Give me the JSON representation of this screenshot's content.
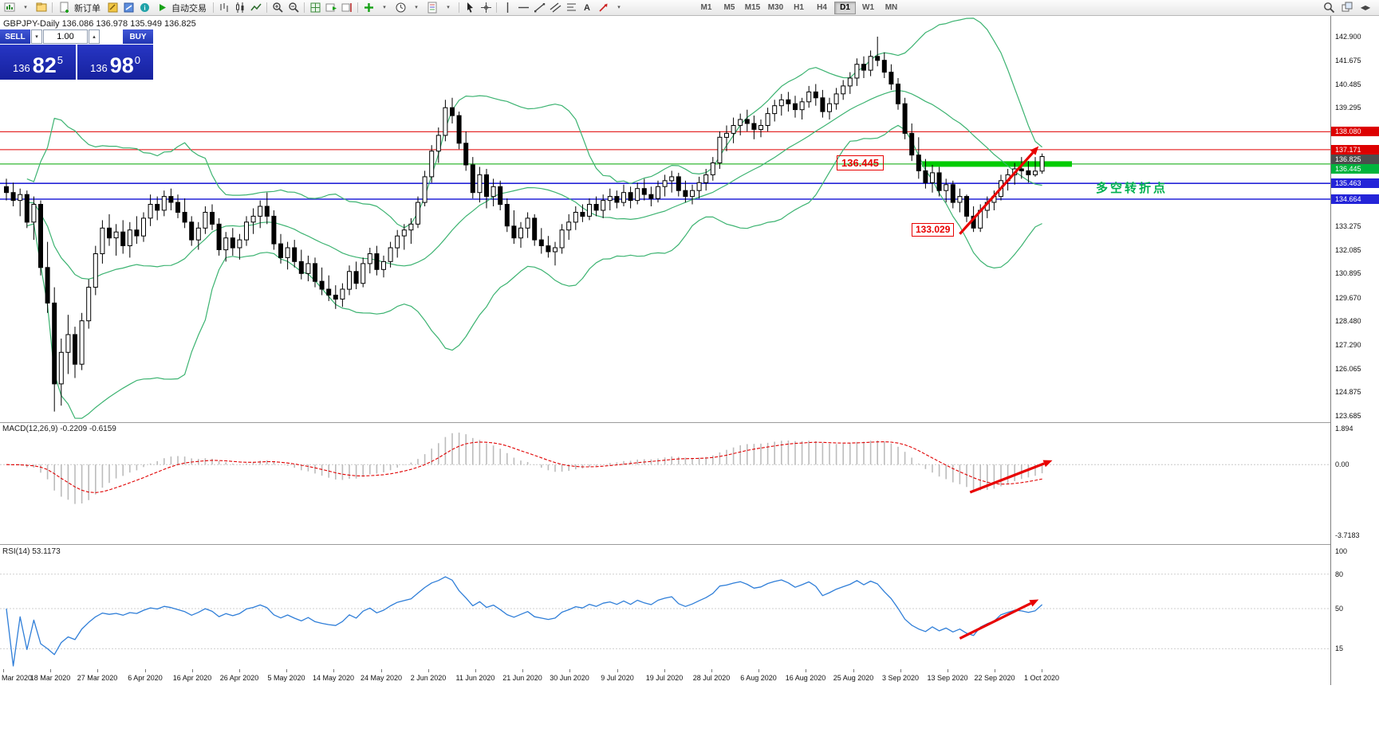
{
  "window": {
    "chart_title": "GBPJPY-Daily 136.086 136.978 135.949 136.825"
  },
  "toolbar": {
    "sections": [
      {
        "items": [
          {
            "name": "new-chart-icon",
            "icon": "newchart"
          },
          {
            "name": "chart-list-dropdown-icon",
            "icon": "chevron"
          },
          {
            "name": "profiles-icon",
            "icon": "profiles"
          }
        ]
      },
      {
        "items": [
          {
            "name": "new-order-button",
            "icon": "neworder",
            "label": "新订单"
          },
          {
            "name": "metaeditor-icon",
            "icon": "editor"
          },
          {
            "name": "market-watch-icon",
            "icon": "market"
          },
          {
            "name": "help-icon",
            "icon": "info"
          },
          {
            "name": "auto-trading-button",
            "icon": "play",
            "label": "自动交易"
          }
        ]
      },
      {
        "items": [
          {
            "name": "bar-chart-icon",
            "icon": "bars"
          },
          {
            "name": "candlestick-chart-icon",
            "icon": "candles"
          },
          {
            "name": "line-chart-icon",
            "icon": "linechart"
          }
        ]
      },
      {
        "items": [
          {
            "name": "zoom-in-icon",
            "icon": "zoomin"
          },
          {
            "name": "zoom-out-icon",
            "icon": "zoomout"
          }
        ]
      },
      {
        "items": [
          {
            "name": "tile-windows-icon",
            "icon": "grid"
          },
          {
            "name": "auto-scroll-icon",
            "icon": "autoscroll"
          },
          {
            "name": "chart-shift-icon",
            "icon": "shift"
          }
        ]
      },
      {
        "items": [
          {
            "name": "indicators-icon",
            "icon": "indplus"
          },
          {
            "name": "indicators-dropdown-icon",
            "icon": "chevron"
          },
          {
            "name": "periods-icon",
            "icon": "clock"
          },
          {
            "name": "periods-dropdown-icon",
            "icon": "chevron"
          },
          {
            "name": "templates-icon",
            "icon": "template"
          },
          {
            "name": "templates-dropdown-icon",
            "icon": "chevron"
          }
        ]
      },
      {
        "items": [
          {
            "name": "cursor-icon",
            "icon": "cursor"
          },
          {
            "name": "crosshair-icon",
            "icon": "crosshair"
          }
        ]
      },
      {
        "items": [
          {
            "name": "vertical-line-icon",
            "icon": "vline"
          },
          {
            "name": "horizontal-line-icon",
            "icon": "hline"
          },
          {
            "name": "trendline-icon",
            "icon": "trend"
          },
          {
            "name": "channel-icon",
            "icon": "channel"
          },
          {
            "name": "fibonacci-icon",
            "icon": "fibo"
          },
          {
            "name": "text-label-icon",
            "icon": "text"
          },
          {
            "name": "arrow-object-icon",
            "icon": "arrowobj"
          },
          {
            "name": "objects-dropdown-icon",
            "icon": "chevron"
          }
        ]
      }
    ],
    "timeframes": [
      "M1",
      "M5",
      "M15",
      "M30",
      "H1",
      "H4",
      "D1",
      "W1",
      "MN"
    ],
    "active_timeframe": "D1",
    "right_items": [
      {
        "name": "search-icon",
        "icon": "search"
      },
      {
        "name": "cascade-windows-icon",
        "icon": "cascade"
      },
      {
        "name": "navigate-charts-icon",
        "icon": "navarrows"
      }
    ]
  },
  "trade_panel": {
    "sell_label": "SELL",
    "buy_label": "BUY",
    "volume": "1.00",
    "spinner_down": "▾",
    "spinner_up": "▴",
    "sell_price_prefix": "136",
    "sell_price_big": "82",
    "sell_price_sup": "5",
    "buy_price_prefix": "136",
    "buy_price_big": "98",
    "buy_price_sup": "0"
  },
  "annotations": {
    "resistance_label": "136.445",
    "low_label": "133.029",
    "turning_point_label": "多空转折点"
  },
  "indicators": {
    "macd_label": "MACD(12,26,9) -0.2209 -0.6159",
    "rsi_label": "RSI(14) 53.1173"
  },
  "price_axis": {
    "ticks": [
      "142.900",
      "141.675",
      "140.485",
      "139.295",
      "133.275",
      "132.085",
      "130.895",
      "129.670",
      "128.480",
      "127.290",
      "126.065",
      "124.875",
      "123.685"
    ],
    "tags": [
      {
        "text": "138.080",
        "color": "#dd0000"
      },
      {
        "text": "137.171",
        "color": "#dd0000"
      },
      {
        "text": "136.825",
        "color": "#4d4d4d"
      },
      {
        "text": "136.445",
        "color": "#00b43c"
      },
      {
        "text": "135.463",
        "color": "#2424d8"
      },
      {
        "text": "134.664",
        "color": "#2424d8"
      }
    ]
  },
  "macd_axis": [
    "1.894",
    "0.00",
    "-3.7183"
  ],
  "rsi_axis": [
    "100",
    "80",
    "50",
    "15"
  ],
  "time_axis": [
    "Mar 2020",
    "18 Mar 2020",
    "27 Mar 2020",
    "6 Apr 2020",
    "16 Apr 2020",
    "26 Apr 2020",
    "5 May 2020",
    "14 May 2020",
    "24 May 2020",
    "2 Jun 2020",
    "11 Jun 2020",
    "21 Jun 2020",
    "30 Jun 2020",
    "9 Jul 2020",
    "19 Jul 2020",
    "28 Jul 2020",
    "6 Aug 2020",
    "16 Aug 2020",
    "25 Aug 2020",
    "3 Sep 2020",
    "13 Sep 2020",
    "22 Sep 2020",
    "1 Oct 2020"
  ],
  "chart_data": {
    "type": "candlestick",
    "symbol": "GBPJPY",
    "period": "Daily",
    "ohlc_header": {
      "open": 136.086,
      "high": 136.978,
      "low": 135.949,
      "close": 136.825
    },
    "price_axis_range": [
      123.44,
      143.87
    ],
    "candles": {
      "open": [
        135.3,
        135.0,
        134.6,
        134.9,
        133.5,
        134.4,
        131.2,
        129.4,
        125.3,
        126.9,
        127.8,
        126.3,
        128.5,
        130.2,
        131.9,
        133.2,
        132.7,
        133.0,
        132.3,
        133.1,
        132.8,
        133.7,
        134.4,
        134.1,
        134.8,
        134.5,
        134.0,
        133.5,
        132.6,
        133.2,
        134.0,
        133.4,
        132.1,
        132.7,
        132.2,
        132.6,
        133.5,
        133.8,
        134.3,
        133.8,
        132.4,
        131.7,
        132.2,
        131.5,
        130.9,
        131.4,
        130.5,
        130.1,
        129.8,
        129.6,
        130.1,
        131.0,
        130.4,
        131.4,
        131.9,
        131.1,
        131.5,
        132.2,
        132.8,
        133.1,
        133.4,
        134.5,
        135.8,
        137.1,
        137.9,
        139.3,
        138.9,
        137.5,
        136.4,
        135.0,
        135.9,
        134.8,
        135.3,
        134.4,
        133.3,
        132.7,
        133.2,
        133.7,
        132.6,
        132.3,
        132.0,
        132.2,
        133.1,
        133.5,
        134.0,
        133.8,
        134.4,
        134.1,
        134.6,
        134.8,
        134.5,
        135.0,
        134.6,
        135.2,
        134.9,
        134.7,
        135.3,
        135.6,
        135.8,
        135.1,
        134.8,
        135.1,
        135.5,
        135.9,
        136.5,
        137.8,
        138.0,
        138.4,
        138.7,
        138.5,
        138.2,
        138.4,
        139.0,
        139.4,
        139.7,
        139.5,
        139.2,
        139.6,
        140.1,
        139.8,
        139.1,
        139.5,
        140.0,
        140.4,
        140.8,
        141.5,
        141.2,
        141.9,
        141.7,
        141.1,
        140.5,
        139.5,
        138.0,
        136.9,
        136.1,
        135.5,
        136.0,
        135.1,
        135.4,
        134.5,
        134.8,
        133.8,
        133.2,
        134.1,
        134.5,
        134.8,
        135.6,
        135.9,
        136.2,
        136.1,
        135.9,
        136.086
      ],
      "high": [
        135.7,
        135.5,
        135.2,
        135.1,
        134.8,
        134.6,
        132.5,
        130.2,
        127.6,
        128.8,
        128.2,
        128.9,
        130.6,
        132.3,
        133.6,
        133.9,
        133.4,
        133.6,
        133.5,
        133.8,
        134.0,
        134.9,
        134.8,
        135.1,
        135.2,
        134.9,
        134.7,
        133.8,
        133.5,
        134.3,
        134.4,
        133.7,
        133.0,
        133.2,
        132.9,
        133.8,
        134.2,
        134.6,
        135.0,
        134.1,
        132.9,
        132.5,
        132.6,
        132.1,
        131.8,
        131.7,
        131.2,
        130.8,
        130.3,
        130.4,
        131.3,
        131.5,
        131.7,
        132.2,
        132.3,
        131.8,
        132.5,
        133.1,
        133.4,
        133.7,
        134.8,
        136.1,
        137.4,
        138.3,
        139.7,
        139.8,
        139.1,
        138.1,
        136.8,
        136.3,
        136.2,
        135.7,
        135.6,
        134.7,
        134.1,
        133.5,
        134.0,
        133.9,
        133.2,
        132.8,
        132.5,
        133.4,
        133.9,
        134.3,
        134.4,
        134.7,
        134.8,
        134.9,
        135.2,
        135.1,
        135.4,
        135.3,
        135.5,
        135.7,
        135.3,
        135.6,
        135.9,
        136.1,
        136.0,
        135.6,
        135.4,
        135.8,
        136.2,
        136.8,
        138.1,
        138.4,
        138.8,
        139.0,
        139.2,
        138.9,
        138.7,
        139.3,
        139.7,
        140.0,
        140.1,
        139.9,
        139.8,
        140.4,
        140.5,
        140.2,
        139.8,
        140.3,
        140.7,
        141.1,
        141.8,
        141.9,
        142.2,
        142.9,
        142.1,
        141.5,
        140.8,
        139.8,
        138.5,
        137.8,
        136.7,
        136.4,
        136.3,
        135.7,
        135.6,
        135.2,
        134.9,
        134.3,
        134.4,
        134.8,
        135.1,
        135.9,
        136.2,
        136.5,
        136.8,
        136.6,
        136.8,
        136.978
      ],
      "low": [
        134.6,
        134.3,
        133.8,
        133.2,
        132.6,
        130.8,
        128.9,
        123.9,
        124.2,
        125.8,
        125.6,
        126.0,
        128.1,
        129.8,
        131.4,
        132.3,
        131.8,
        131.9,
        131.7,
        132.4,
        132.5,
        133.3,
        133.6,
        133.8,
        134.1,
        133.7,
        133.2,
        132.3,
        132.1,
        132.9,
        133.1,
        131.8,
        131.5,
        131.8,
        131.6,
        132.3,
        132.9,
        133.2,
        133.4,
        132.1,
        131.4,
        131.1,
        131.2,
        130.6,
        130.5,
        130.2,
        129.8,
        129.5,
        129.1,
        129.2,
        129.8,
        130.1,
        130.2,
        130.9,
        130.8,
        130.7,
        131.2,
        131.7,
        132.1,
        132.4,
        133.2,
        134.3,
        135.5,
        136.5,
        137.6,
        138.5,
        137.2,
        136.1,
        134.7,
        134.5,
        134.2,
        134.3,
        134.1,
        133.0,
        132.4,
        132.2,
        132.7,
        132.3,
        131.9,
        131.7,
        131.3,
        131.9,
        132.6,
        133.1,
        133.5,
        133.6,
        133.8,
        133.7,
        134.1,
        134.2,
        134.3,
        134.2,
        134.4,
        134.6,
        134.3,
        134.5,
        134.8,
        135.0,
        134.8,
        134.5,
        134.4,
        134.7,
        135.1,
        135.6,
        136.2,
        137.1,
        137.5,
        137.9,
        138.1,
        137.7,
        137.8,
        138.1,
        138.6,
        138.9,
        139.1,
        138.8,
        138.7,
        139.3,
        139.4,
        138.8,
        138.7,
        139.2,
        139.7,
        140.0,
        140.4,
        140.8,
        140.9,
        141.4,
        140.8,
        140.2,
        139.2,
        137.7,
        136.6,
        135.7,
        135.2,
        135.0,
        134.8,
        134.5,
        134.2,
        134.0,
        133.5,
        133.0,
        133.0,
        133.7,
        134.1,
        134.6,
        135.1,
        135.4,
        135.7,
        135.5,
        135.8,
        135.949
      ],
      "close": [
        135.0,
        134.6,
        134.9,
        133.5,
        134.4,
        131.2,
        129.4,
        125.3,
        126.9,
        127.8,
        126.3,
        128.5,
        130.2,
        131.9,
        133.2,
        132.7,
        133.0,
        132.3,
        133.1,
        132.8,
        133.7,
        134.4,
        134.1,
        134.8,
        134.5,
        134.0,
        133.5,
        132.6,
        133.2,
        134.0,
        133.4,
        132.1,
        132.7,
        132.2,
        132.6,
        133.5,
        133.8,
        134.3,
        133.8,
        132.4,
        131.7,
        132.2,
        131.5,
        130.9,
        131.4,
        130.5,
        130.1,
        129.8,
        129.6,
        130.1,
        131.0,
        130.4,
        131.4,
        131.9,
        131.1,
        131.5,
        132.2,
        132.8,
        133.1,
        133.4,
        134.5,
        135.8,
        137.1,
        137.9,
        139.3,
        138.9,
        137.5,
        136.4,
        135.0,
        135.9,
        134.8,
        135.3,
        134.4,
        133.3,
        132.7,
        133.2,
        133.7,
        132.6,
        132.3,
        132.0,
        132.2,
        133.1,
        133.5,
        134.0,
        133.8,
        134.4,
        134.1,
        134.6,
        134.8,
        134.5,
        135.0,
        134.6,
        135.2,
        134.9,
        134.7,
        135.3,
        135.6,
        135.8,
        135.1,
        134.8,
        135.1,
        135.5,
        135.9,
        136.5,
        137.8,
        138.0,
        138.4,
        138.7,
        138.5,
        138.2,
        138.4,
        139.0,
        139.4,
        139.7,
        139.5,
        139.2,
        139.6,
        140.1,
        139.8,
        139.1,
        139.5,
        140.0,
        140.4,
        140.8,
        141.5,
        141.2,
        141.9,
        141.7,
        141.1,
        140.5,
        139.5,
        138.0,
        136.9,
        136.1,
        135.5,
        136.0,
        135.1,
        135.4,
        134.5,
        134.8,
        133.8,
        133.2,
        134.1,
        134.5,
        134.8,
        135.6,
        135.9,
        136.2,
        136.1,
        135.9,
        136.086,
        136.825
      ]
    },
    "horizontal_lines": [
      {
        "price": 138.08,
        "color": "#e00000",
        "width": 1
      },
      {
        "price": 137.171,
        "color": "#e00000",
        "width": 1
      },
      {
        "price": 136.445,
        "color": "#00a800",
        "width": 1
      },
      {
        "price": 135.463,
        "color": "#2424d8",
        "width": 1.6
      },
      {
        "price": 134.664,
        "color": "#2424d8",
        "width": 1.6
      }
    ],
    "zone_segment": {
      "price": 136.445,
      "color": "#00cc00",
      "thickness": 7,
      "from_index": 134,
      "extend_past_last": 38
    },
    "bollinger": {
      "period": 20,
      "deviation": 2,
      "color": "#3cb371"
    },
    "macd": {
      "fast": 12,
      "slow": 26,
      "signal": 9,
      "value": -0.2209,
      "signal_value": -0.6159,
      "range": [
        -3.7183,
        1.894
      ],
      "histogram_color": "#bcbcbc",
      "signal_color": "#e00000"
    },
    "rsi": {
      "period": 14,
      "value": 53.1173,
      "levels": [
        80,
        50,
        15
      ],
      "range": [
        0,
        100
      ],
      "color": "#2f7ed8"
    },
    "trend_arrows": [
      {
        "panel": "price",
        "from_index": 139,
        "from_value": 132.9,
        "to_index": 150.5,
        "to_value": 137.35,
        "color": "#e80000"
      },
      {
        "panel": "macd",
        "from_index": 140.5,
        "from_value": -1.45,
        "to_index": 152.5,
        "to_value": 0.22,
        "color": "#e80000"
      },
      {
        "panel": "rsi",
        "from_index": 139,
        "from_value": 24,
        "to_index": 150.5,
        "to_value": 58,
        "color": "#e80000"
      }
    ]
  }
}
